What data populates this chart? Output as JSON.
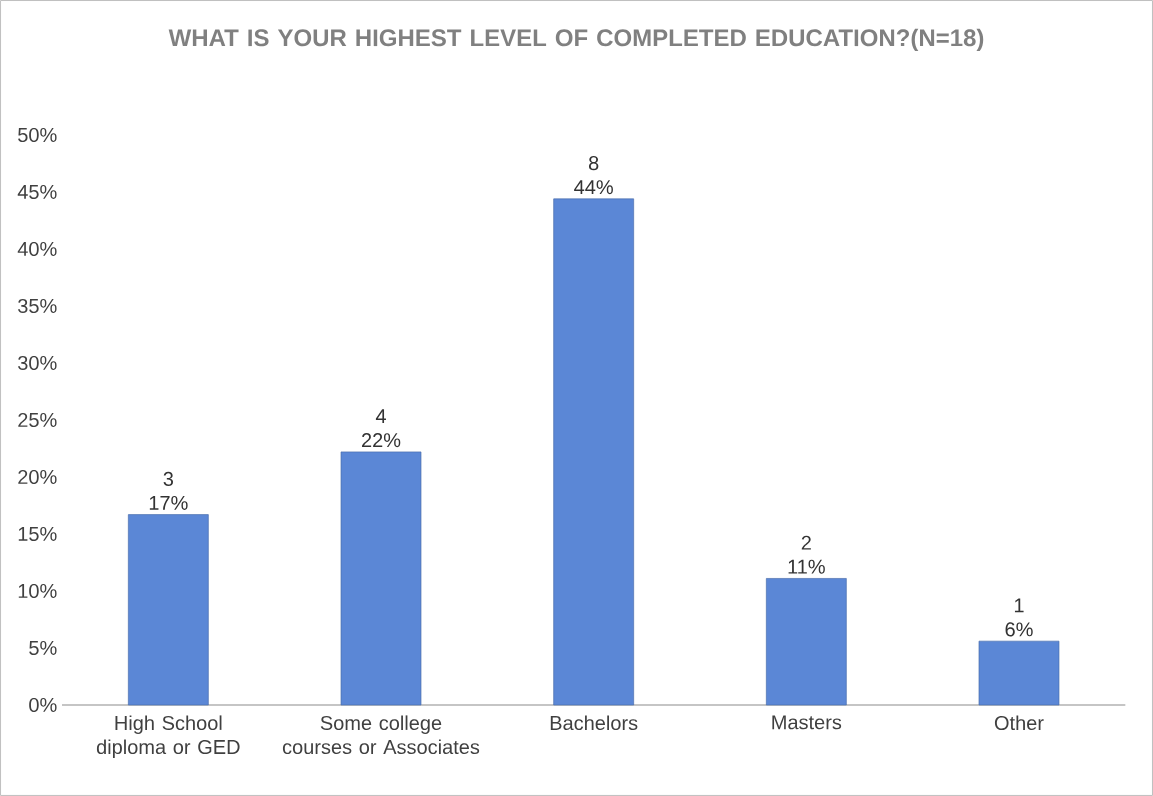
{
  "chart_data": {
    "type": "bar",
    "title": "WHAT IS YOUR HIGHEST LEVEL OF COMPLETED EDUCATION?(N=18)",
    "categories": [
      "High School diploma or GED",
      "Some college courses or Associates",
      "Bachelors",
      "Masters",
      "Other"
    ],
    "values": [
      16.7,
      22.2,
      44.4,
      11.1,
      5.6
    ],
    "value_labels": [
      "3 17%",
      "4 22%",
      "8 44%",
      "2 11%",
      "1 6%"
    ],
    "color": "#5b87d6",
    "ylim": [
      0,
      50
    ],
    "yticks": [
      {
        "value": 0,
        "label": "0%"
      },
      {
        "value": 5,
        "label": "5%"
      },
      {
        "value": 10,
        "label": "10%"
      },
      {
        "value": 15,
        "label": "15%"
      },
      {
        "value": 20,
        "label": "20%"
      },
      {
        "value": 25,
        "label": "25%"
      },
      {
        "value": 30,
        "label": "30%"
      },
      {
        "value": 35,
        "label": "35%"
      },
      {
        "value": 40,
        "label": "40%"
      },
      {
        "value": 45,
        "label": "45%"
      },
      {
        "value": 50,
        "label": "50%"
      }
    ],
    "grid": false
  }
}
